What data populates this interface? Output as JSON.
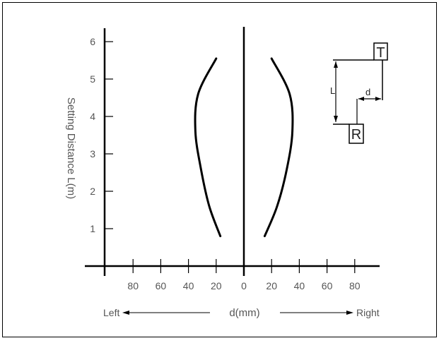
{
  "chart_data": {
    "type": "line",
    "y_axis_title": "Setting Distance L(m)",
    "x_axis_title": "d(mm)",
    "y_ticks": [
      "1",
      "2",
      "3",
      "4",
      "5",
      "6"
    ],
    "x_ticks": [
      "80",
      "60",
      "40",
      "20",
      "0",
      "20",
      "40",
      "60",
      "80"
    ],
    "left_label": "Left",
    "right_label": "Right",
    "series": [
      {
        "side": "left",
        "points": [
          [
            -17,
            0.8
          ],
          [
            -25,
            1.6
          ],
          [
            -31,
            2.6
          ],
          [
            -35,
            3.6
          ],
          [
            -33,
            4.6
          ],
          [
            -20,
            5.55
          ]
        ]
      },
      {
        "side": "right",
        "points": [
          [
            15,
            0.8
          ],
          [
            24,
            1.6
          ],
          [
            31,
            2.6
          ],
          [
            35,
            3.6
          ],
          [
            33,
            4.6
          ],
          [
            20,
            5.55
          ]
        ]
      }
    ]
  },
  "inset": {
    "transmitter_label": "T",
    "receiver_label": "R",
    "length_label": "L",
    "offset_label": "d"
  }
}
